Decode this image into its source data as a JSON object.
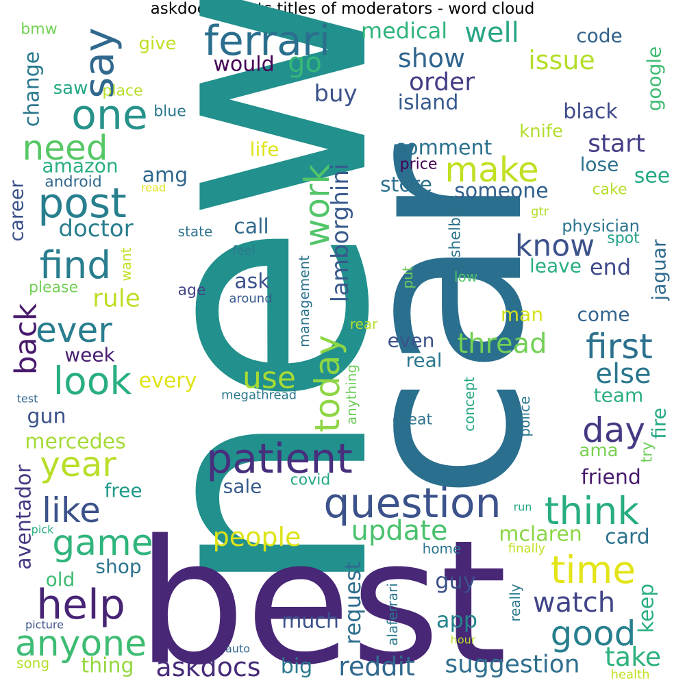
{
  "title": "askdocs - posts titles of moderators - word cloud",
  "chart_data": {
    "type": "wordcloud",
    "palette": "viridis",
    "words": [
      {
        "text": "new",
        "color": "#22908c"
      },
      {
        "text": "best",
        "color": "#482776"
      },
      {
        "text": "car",
        "color": "#2b6f8e"
      },
      {
        "text": "ferrari",
        "color": "#2b6f8e"
      },
      {
        "text": "one",
        "color": "#26928a"
      },
      {
        "text": "say",
        "color": "#30688e"
      },
      {
        "text": "well",
        "color": "#28a585"
      },
      {
        "text": "go",
        "color": "#36b879"
      },
      {
        "text": "medical",
        "color": "#2fb47c"
      },
      {
        "text": "code",
        "color": "#33638d"
      },
      {
        "text": "show",
        "color": "#31668e"
      },
      {
        "text": "issue",
        "color": "#b5de2b"
      },
      {
        "text": "google",
        "color": "#3fbc73"
      },
      {
        "text": "order",
        "color": "#433d84"
      },
      {
        "text": "buy",
        "color": "#3b528b"
      },
      {
        "text": "island",
        "color": "#375b8d"
      },
      {
        "text": "black",
        "color": "#3e4a89"
      },
      {
        "text": "knife",
        "color": "#b2dd2d"
      },
      {
        "text": "need",
        "color": "#57c766"
      },
      {
        "text": "post",
        "color": "#277f8e"
      },
      {
        "text": "find",
        "color": "#287d8e"
      },
      {
        "text": "make",
        "color": "#c2df23"
      },
      {
        "text": "work",
        "color": "#52c569"
      },
      {
        "text": "lamborghini",
        "color": "#38598c"
      },
      {
        "text": "start",
        "color": "#433e85"
      },
      {
        "text": "comment",
        "color": "#2c728e"
      },
      {
        "text": "price",
        "color": "#440154"
      },
      {
        "text": "lose",
        "color": "#2d718e"
      },
      {
        "text": "see",
        "color": "#22a884"
      },
      {
        "text": "store",
        "color": "#2d718e"
      },
      {
        "text": "someone",
        "color": "#34618d"
      },
      {
        "text": "cake",
        "color": "#b5de2b"
      },
      {
        "text": "know",
        "color": "#3b528b"
      },
      {
        "text": "physician",
        "color": "#2b748e"
      },
      {
        "text": "spot",
        "color": "#1fa188"
      },
      {
        "text": "end",
        "color": "#3e4a89"
      },
      {
        "text": "leave",
        "color": "#29af7f"
      },
      {
        "text": "jaguar",
        "color": "#306a8e"
      },
      {
        "text": "ever",
        "color": "#287d8e"
      },
      {
        "text": "look",
        "color": "#28ae80"
      },
      {
        "text": "back",
        "color": "#481a6c"
      },
      {
        "text": "rule",
        "color": "#bddf26"
      },
      {
        "text": "today",
        "color": "#8ed645"
      },
      {
        "text": "first",
        "color": "#2c718e"
      },
      {
        "text": "thread",
        "color": "#73d056"
      },
      {
        "text": "else",
        "color": "#2a768e"
      },
      {
        "text": "use",
        "color": "#a8db34"
      },
      {
        "text": "day",
        "color": "#443983"
      },
      {
        "text": "patient",
        "color": "#472f7d"
      },
      {
        "text": "question",
        "color": "#3b528b"
      },
      {
        "text": "think",
        "color": "#27ad81"
      },
      {
        "text": "time",
        "color": "#e3e418"
      },
      {
        "text": "game",
        "color": "#2fb47c"
      },
      {
        "text": "help",
        "color": "#482475"
      },
      {
        "text": "anyone",
        "color": "#3fbc73"
      },
      {
        "text": "year",
        "color": "#b8de29"
      },
      {
        "text": "like",
        "color": "#3b528b"
      },
      {
        "text": "good",
        "color": "#277f8e"
      },
      {
        "text": "watch",
        "color": "#414487"
      },
      {
        "text": "update",
        "color": "#4ac16d"
      },
      {
        "text": "people",
        "color": "#dde318"
      },
      {
        "text": "askdocs",
        "color": "#472c7a"
      },
      {
        "text": "reddit",
        "color": "#31688e"
      },
      {
        "text": "suggestion",
        "color": "#2e6e8e"
      },
      {
        "text": "take",
        "color": "#2db27d"
      },
      {
        "text": "request",
        "color": "#2e6e8e"
      },
      {
        "text": "guy",
        "color": "#3c4f8a"
      },
      {
        "text": "app",
        "color": "#25848e"
      },
      {
        "text": "keep",
        "color": "#29af7f"
      },
      {
        "text": "card",
        "color": "#2c738e"
      },
      {
        "text": "mclaren",
        "color": "#8bd646"
      },
      {
        "text": "much",
        "color": "#3b528b"
      },
      {
        "text": "thing",
        "color": "#95d840"
      },
      {
        "text": "big",
        "color": "#2a788e"
      },
      {
        "text": "mercedes",
        "color": "#a5db36"
      },
      {
        "text": "aventador",
        "color": "#443983"
      },
      {
        "text": "free",
        "color": "#1f9a8a"
      },
      {
        "text": "sale",
        "color": "#375b8d"
      },
      {
        "text": "friend",
        "color": "#481b6d"
      },
      {
        "text": "ama",
        "color": "#7ad151"
      },
      {
        "text": "every",
        "color": "#dfe318"
      },
      {
        "text": "gun",
        "color": "#3b528b"
      },
      {
        "text": "week",
        "color": "#481f70"
      },
      {
        "text": "real",
        "color": "#2a788e"
      },
      {
        "text": "even",
        "color": "#3b528b"
      },
      {
        "text": "man",
        "color": "#d5e21a"
      },
      {
        "text": "come",
        "color": "#33638d"
      },
      {
        "text": "team",
        "color": "#2ab07f"
      },
      {
        "text": "fire",
        "color": "#22a884"
      },
      {
        "text": "try",
        "color": "#6ccd5a"
      },
      {
        "text": "ask",
        "color": "#3b528b"
      },
      {
        "text": "age",
        "color": "#414487"
      },
      {
        "text": "around",
        "color": "#375b8d"
      },
      {
        "text": "feel",
        "color": "#2a788e"
      },
      {
        "text": "call",
        "color": "#306a8e"
      },
      {
        "text": "amg",
        "color": "#31688e"
      },
      {
        "text": "life",
        "color": "#dde318"
      },
      {
        "text": "amazon",
        "color": "#29af7f"
      },
      {
        "text": "android",
        "color": "#31688e"
      },
      {
        "text": "doctor",
        "color": "#287d8e"
      },
      {
        "text": "career",
        "color": "#3b528b"
      },
      {
        "text": "please",
        "color": "#73d056"
      },
      {
        "text": "want",
        "color": "#c2df23"
      },
      {
        "text": "state",
        "color": "#2d718e"
      },
      {
        "text": "blue",
        "color": "#2a788e"
      },
      {
        "text": "place",
        "color": "#b5de2b"
      },
      {
        "text": "saw",
        "color": "#22a884"
      },
      {
        "text": "give",
        "color": "#c0df25"
      },
      {
        "text": "would",
        "color": "#440154"
      },
      {
        "text": "change",
        "color": "#2a788e"
      },
      {
        "text": "bmw",
        "color": "#73d056"
      },
      {
        "text": "shelby",
        "color": "#2c738e"
      },
      {
        "text": "low",
        "color": "#52c569"
      },
      {
        "text": "put",
        "color": "#6ccd5a"
      },
      {
        "text": "gtr",
        "color": "#b5de2b"
      },
      {
        "text": "read",
        "color": "#dde318"
      },
      {
        "text": "management",
        "color": "#2c728e"
      },
      {
        "text": "rear",
        "color": "#b5de2b"
      },
      {
        "text": "anything",
        "color": "#6ccd5a"
      },
      {
        "text": "concept",
        "color": "#22a884"
      },
      {
        "text": "police",
        "color": "#2a788e"
      },
      {
        "text": "great",
        "color": "#2c728e"
      },
      {
        "text": "megathread",
        "color": "#2a788e"
      },
      {
        "text": "covid",
        "color": "#22a884"
      },
      {
        "text": "test",
        "color": "#31688e"
      },
      {
        "text": "pick",
        "color": "#27ad81"
      },
      {
        "text": "old",
        "color": "#3fbc73"
      },
      {
        "text": "shop",
        "color": "#2c738e"
      },
      {
        "text": "home",
        "color": "#2c728e"
      },
      {
        "text": "finally",
        "color": "#c2df23"
      },
      {
        "text": "run",
        "color": "#22a884"
      },
      {
        "text": "really",
        "color": "#2a788e"
      },
      {
        "text": "alaferrari",
        "color": "#2a788e"
      },
      {
        "text": "hour",
        "color": "#b5de2b"
      },
      {
        "text": "auto",
        "color": "#31688e"
      },
      {
        "text": "picture",
        "color": "#3b528b"
      },
      {
        "text": "song",
        "color": "#b5de2b"
      },
      {
        "text": "health",
        "color": "#c2df23"
      }
    ]
  }
}
